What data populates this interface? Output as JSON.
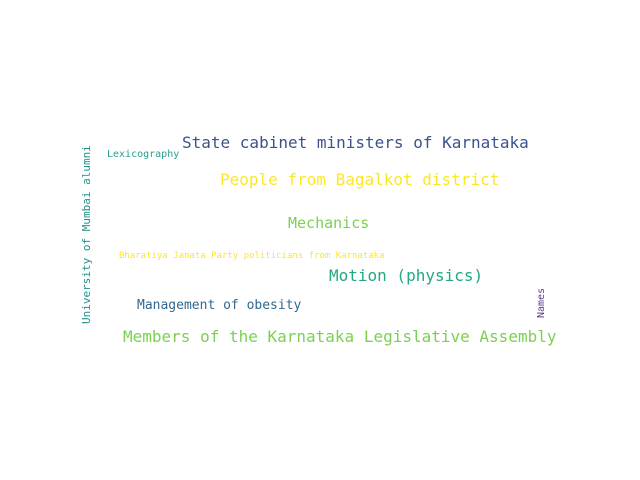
{
  "words": [
    {
      "text": "State cabinet ministers of Karnataka",
      "color": "#3b528b"
    },
    {
      "text": "People from Bagalkot district",
      "color": "#fde725"
    },
    {
      "text": "Mechanics",
      "color": "#7ad151"
    },
    {
      "text": "Bharatiya Janata Party politicians from Karnataka",
      "color": "#fde725"
    },
    {
      "text": "Motion (physics)",
      "color": "#22a884"
    },
    {
      "text": "Management of obesity",
      "color": "#31688e"
    },
    {
      "text": "Members of the Karnataka Legislative Assembly",
      "color": "#7ad151"
    },
    {
      "text": "Lexicography",
      "color": "#2a9d8f"
    },
    {
      "text": "University of Mumbai alumni",
      "color": "#21918c"
    },
    {
      "text": "Names",
      "color": "#5b3a8c"
    }
  ]
}
